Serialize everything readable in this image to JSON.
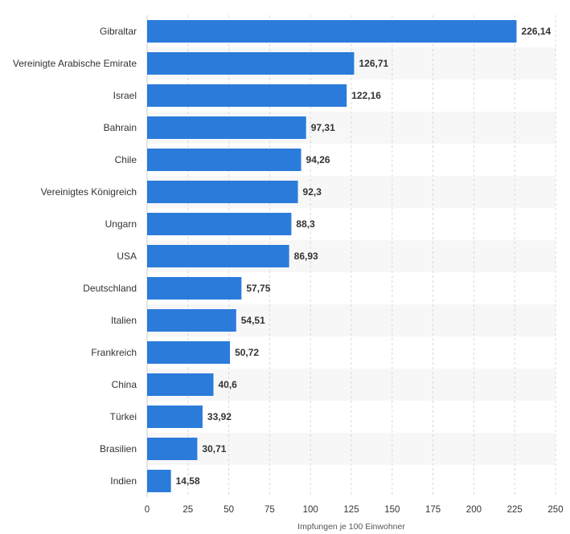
{
  "chart_data": {
    "type": "bar",
    "orientation": "horizontal",
    "categories": [
      "Gibraltar",
      "Vereinigte Arabische Emirate",
      "Israel",
      "Bahrain",
      "Chile",
      "Vereinigtes Königreich",
      "Ungarn",
      "USA",
      "Deutschland",
      "Italien",
      "Frankreich",
      "China",
      "Türkei",
      "Brasilien",
      "Indien"
    ],
    "values": [
      226.14,
      126.71,
      122.16,
      97.31,
      94.26,
      92.3,
      88.3,
      86.93,
      57.75,
      54.51,
      50.72,
      40.6,
      33.92,
      30.71,
      14.58
    ],
    "value_labels": [
      "226,14",
      "126,71",
      "122,16",
      "97,31",
      "94,26",
      "92,3",
      "88,3",
      "86,93",
      "57,75",
      "54,51",
      "50,72",
      "40,6",
      "33,92",
      "30,71",
      "14,58"
    ],
    "xlabel": "Impfungen je 100 Einwohner",
    "xlim": [
      0,
      250
    ],
    "xticks": [
      0,
      25,
      50,
      75,
      100,
      125,
      150,
      175,
      200,
      225,
      250
    ],
    "grid": "vertical-dashed",
    "bar_color": "#2b7bdb",
    "alt_row_color": "#f7f7f7"
  }
}
